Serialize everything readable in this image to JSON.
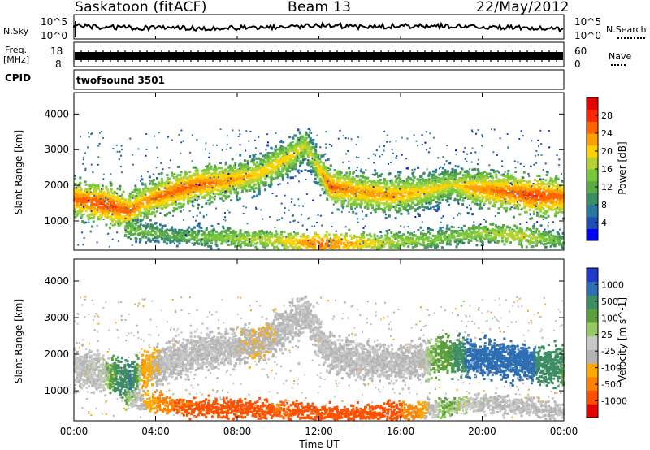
{
  "header": {
    "station": "Saskatoon (fitACF)",
    "beam": "Beam 13",
    "date": "22/May/2012"
  },
  "noise_panel": {
    "left_label": "N.Sky",
    "right_label": "N.Search",
    "left_ticks": [
      "10^5",
      "10^0"
    ],
    "right_ticks": [
      "10^5",
      "10^0"
    ]
  },
  "freq_panel": {
    "left_label_top": "Freq.",
    "left_label_bottom": "[MHz]",
    "right_label": "Nave",
    "left_ticks": [
      "18",
      "8"
    ],
    "right_ticks": [
      "60",
      "0"
    ]
  },
  "cpid_panel": {
    "label": "CPID",
    "program": "twofsound 3501"
  },
  "time_axis": {
    "label": "Time UT",
    "ticks": [
      "00:00",
      "04:00",
      "08:00",
      "12:00",
      "16:00",
      "20:00",
      "00:00"
    ]
  },
  "colors": {
    "power_scale": [
      "#0000ff",
      "#1e50b4",
      "#2a78a0",
      "#3c8c64",
      "#5aaa46",
      "#78c83c",
      "#b4d232",
      "#ffd200",
      "#ffa000",
      "#ff6400",
      "#ff2800",
      "#e60000"
    ],
    "velocity_scale": [
      "#1e3cc8",
      "#2d6eb4",
      "#3c8c64",
      "#5aa03c",
      "#96c864",
      "#c8c8c8",
      "#b4b4b4",
      "#ffaa00",
      "#ff8200",
      "#ff5000",
      "#e60000"
    ]
  },
  "chart_data": [
    {
      "type": "heatmap",
      "title": "Power",
      "xlabel": "",
      "ylabel": "Slant Range [km]",
      "x_ticks": [
        "00:00",
        "04:00",
        "08:00",
        "12:00",
        "16:00",
        "20:00",
        "00:00"
      ],
      "y_ticks": [
        "1000",
        "2000",
        "3000",
        "4000"
      ],
      "xlim_hours": [
        0,
        24
      ],
      "ylim_km": [
        180,
        4600
      ],
      "colorbar": {
        "label": "Power [dB]",
        "ticks": [
          "4",
          "8",
          "12",
          "16",
          "20",
          "24",
          "28"
        ],
        "range": [
          0,
          30
        ]
      },
      "features": [
        {
          "name": "main F-region band",
          "points": [
            [
              0,
              1650,
              24
            ],
            [
              1.5,
              1500,
              26
            ],
            [
              2.7,
              1300,
              24
            ],
            [
              3.3,
              1550,
              22
            ],
            [
              4.5,
              1800,
              24
            ],
            [
              6,
              2050,
              24
            ],
            [
              7.5,
              2150,
              22
            ],
            [
              9,
              2350,
              20
            ],
            [
              10.3,
              2750,
              20
            ],
            [
              11.3,
              3150,
              18
            ],
            [
              11.8,
              2650,
              18
            ],
            [
              12.5,
              2000,
              24
            ],
            [
              14,
              1850,
              22
            ],
            [
              15.5,
              1750,
              22
            ],
            [
              17,
              1850,
              20
            ],
            [
              18.5,
              2050,
              18
            ],
            [
              19.5,
              1950,
              22
            ],
            [
              21,
              1850,
              24
            ],
            [
              22.5,
              1750,
              26
            ],
            [
              24,
              1700,
              24
            ]
          ]
        },
        {
          "name": "near range echoes",
          "points": [
            [
              2.5,
              800,
              14
            ],
            [
              5,
              600,
              12
            ],
            [
              8,
              550,
              16
            ],
            [
              10,
              480,
              18
            ],
            [
              12,
              380,
              24
            ],
            [
              14,
              400,
              20
            ],
            [
              16,
              450,
              16
            ],
            [
              18,
              550,
              14
            ],
            [
              20,
              700,
              16
            ],
            [
              22,
              600,
              18
            ],
            [
              24,
              450,
              12
            ]
          ]
        }
      ]
    },
    {
      "type": "heatmap",
      "title": "Velocity",
      "xlabel": "Time UT",
      "ylabel": "Slant Range [km]",
      "x_ticks": [
        "00:00",
        "04:00",
        "08:00",
        "12:00",
        "16:00",
        "20:00",
        "00:00"
      ],
      "y_ticks": [
        "1000",
        "2000",
        "3000",
        "4000"
      ],
      "xlim_hours": [
        0,
        24
      ],
      "ylim_km": [
        180,
        4600
      ],
      "colorbar": {
        "label": "Velocity [m s^-1]",
        "ticks": [
          "1000",
          "500",
          "100",
          "25",
          "-25",
          "-100",
          "-500",
          "-1000"
        ],
        "range": [
          -1000,
          1000
        ]
      },
      "features": [
        {
          "name": "main F-region band",
          "points": [
            [
              0,
              1650,
              0
            ],
            [
              1.5,
              1500,
              10
            ],
            [
              2.7,
              1300,
              300
            ],
            [
              3.3,
              1550,
              -50
            ],
            [
              4.5,
              1800,
              0
            ],
            [
              6,
              2050,
              0
            ],
            [
              7.5,
              2150,
              0
            ],
            [
              9,
              2350,
              -20
            ],
            [
              10.3,
              2750,
              0
            ],
            [
              11.3,
              3150,
              0
            ],
            [
              11.8,
              2650,
              0
            ],
            [
              12.5,
              2000,
              0
            ],
            [
              14,
              1850,
              0
            ],
            [
              15.5,
              1750,
              0
            ],
            [
              17,
              1850,
              0
            ],
            [
              18.5,
              2050,
              120
            ],
            [
              19.5,
              1950,
              400
            ],
            [
              21,
              1850,
              600
            ],
            [
              22.5,
              1750,
              300
            ],
            [
              24,
              1700,
              100
            ]
          ]
        },
        {
          "name": "near range echoes",
          "points": [
            [
              2.5,
              800,
              50
            ],
            [
              5,
              600,
              -150
            ],
            [
              8,
              550,
              -200
            ],
            [
              10,
              480,
              -150
            ],
            [
              12,
              380,
              -200
            ],
            [
              14,
              400,
              -300
            ],
            [
              16,
              450,
              -150
            ],
            [
              18,
              550,
              50
            ],
            [
              20,
              700,
              0
            ],
            [
              22,
              600,
              0
            ],
            [
              24,
              450,
              0
            ]
          ]
        }
      ]
    }
  ]
}
